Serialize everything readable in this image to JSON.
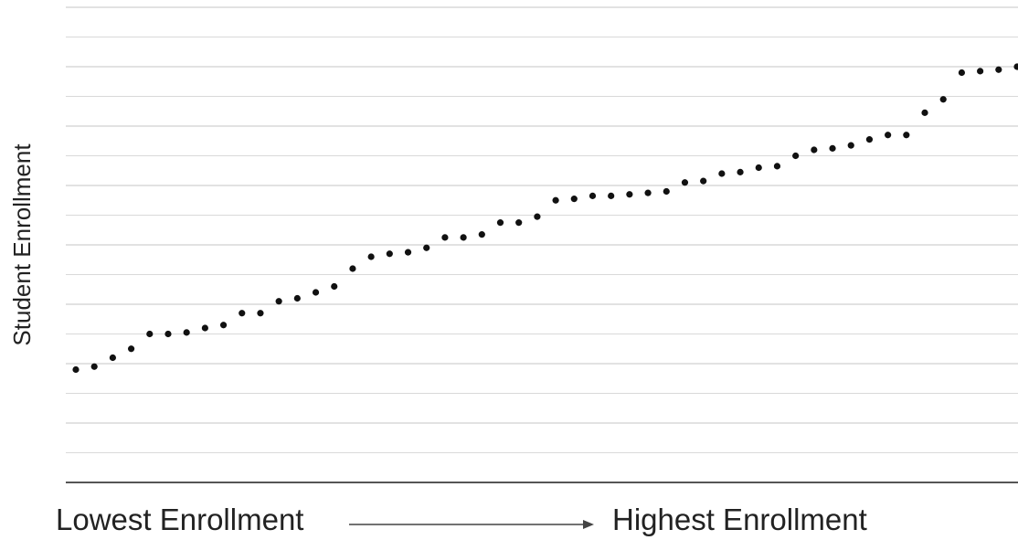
{
  "chart_data": {
    "type": "scatter",
    "title": "",
    "ylabel": "Student Enrollment",
    "xlabel_left": "Lowest Enrollment",
    "xlabel_right": "Highest Enrollment",
    "grid": true,
    "legend": "none",
    "ylim": [
      0,
      16
    ],
    "point_color": "#111111",
    "x": [
      1,
      2,
      3,
      4,
      5,
      6,
      7,
      8,
      9,
      10,
      11,
      12,
      13,
      14,
      15,
      16,
      17,
      18,
      19,
      20,
      21,
      22,
      23,
      24,
      25,
      26,
      27,
      28,
      29,
      30,
      31,
      32,
      33,
      34,
      35,
      36,
      37,
      38,
      39,
      40,
      41,
      42,
      43,
      44,
      45,
      46,
      47,
      48,
      49,
      50,
      51,
      52
    ],
    "values": [
      3.8,
      3.9,
      4.2,
      4.5,
      5.0,
      5.0,
      5.05,
      5.2,
      5.3,
      5.7,
      5.7,
      6.1,
      6.2,
      6.4,
      6.6,
      7.2,
      7.6,
      7.7,
      7.75,
      7.9,
      8.25,
      8.25,
      8.35,
      8.75,
      8.75,
      8.95,
      9.5,
      9.55,
      9.65,
      9.65,
      9.7,
      9.75,
      9.8,
      10.1,
      10.15,
      10.4,
      10.45,
      10.6,
      10.65,
      11.0,
      11.2,
      11.25,
      11.35,
      11.55,
      11.7,
      11.7,
      12.45,
      12.9,
      13.8,
      13.85,
      13.9,
      14.0
    ]
  }
}
